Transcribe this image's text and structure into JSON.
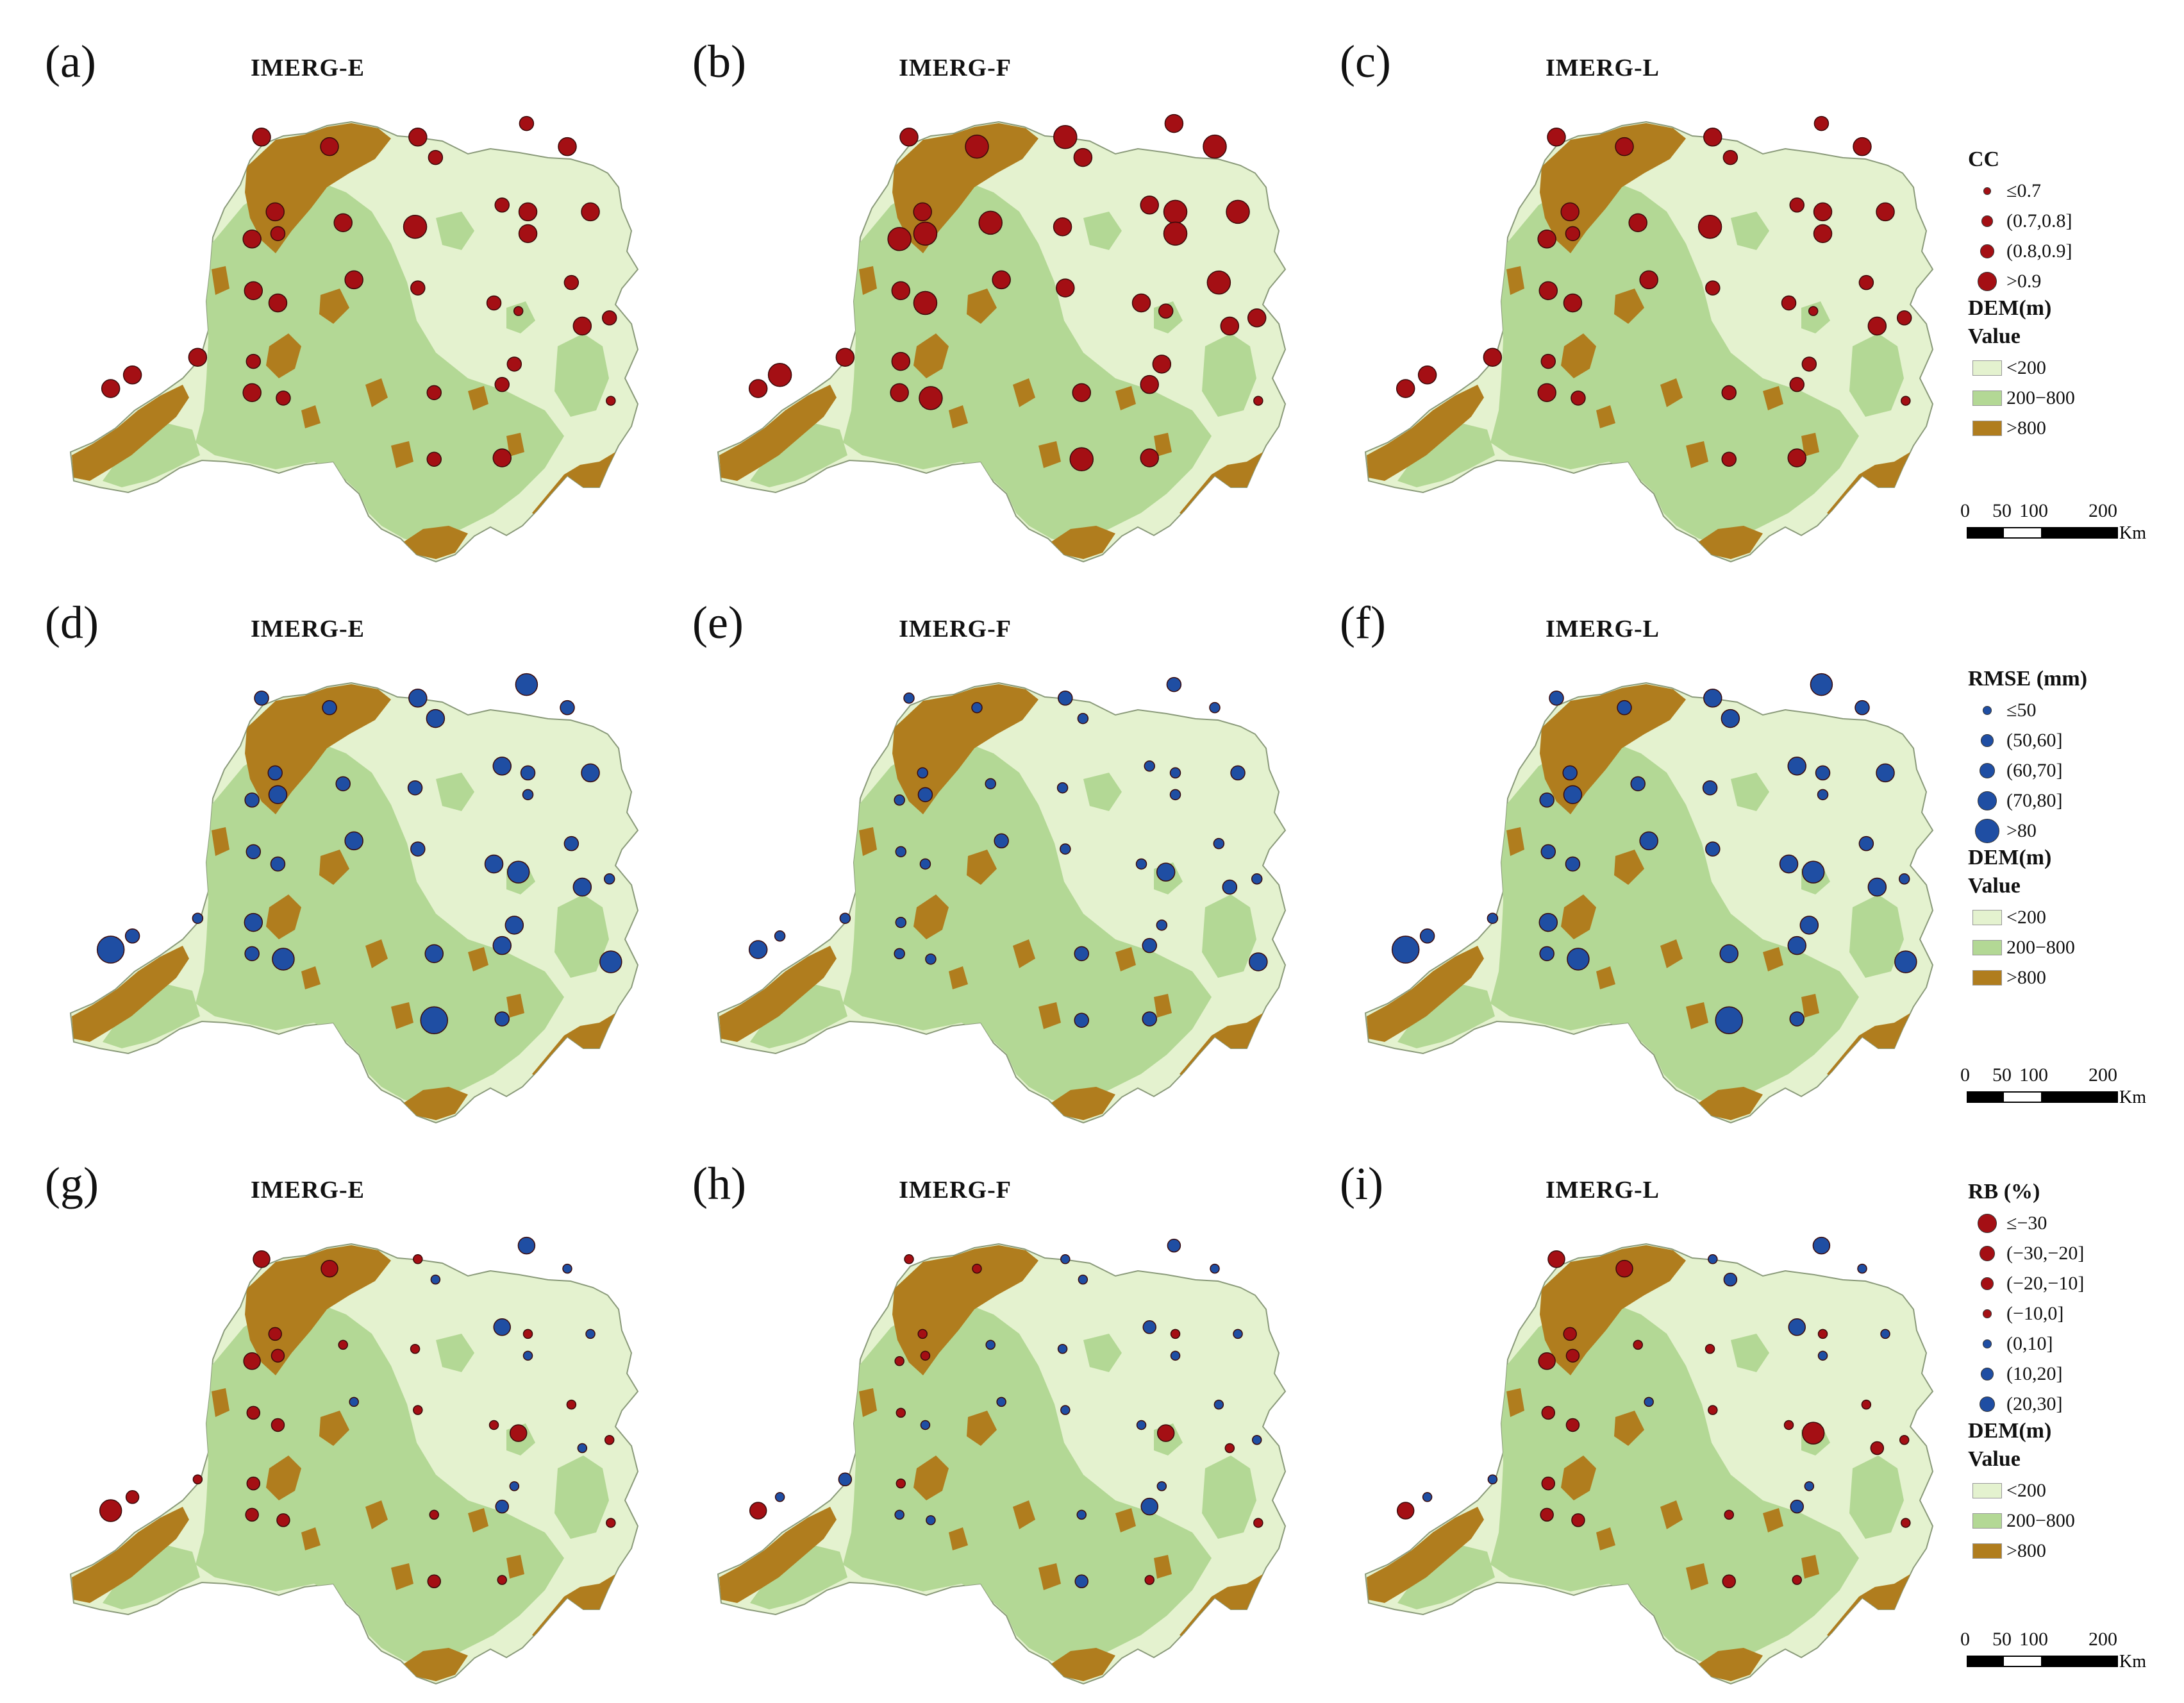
{
  "panels": [
    {
      "letter": "(a)",
      "title": "IMERG-E",
      "row": "cc"
    },
    {
      "letter": "(b)",
      "title": "IMERG-F",
      "row": "cc"
    },
    {
      "letter": "(c)",
      "title": "IMERG-L",
      "row": "cc"
    },
    {
      "letter": "(d)",
      "title": "IMERG-E",
      "row": "rmse"
    },
    {
      "letter": "(e)",
      "title": "IMERG-F",
      "row": "rmse"
    },
    {
      "letter": "(f)",
      "title": "IMERG-L",
      "row": "rmse"
    },
    {
      "letter": "(g)",
      "title": "IMERG-E",
      "row": "rb"
    },
    {
      "letter": "(h)",
      "title": "IMERG-F",
      "row": "rb"
    },
    {
      "letter": "(i)",
      "title": "IMERG-L",
      "row": "rb"
    }
  ],
  "legends": {
    "cc": {
      "title": "CC",
      "classes": [
        {
          "label": "≤0.7",
          "color": "#a40f14",
          "size": 1
        },
        {
          "label": "(0.7,0.8]",
          "color": "#a40f14",
          "size": 2
        },
        {
          "label": "(0.8,0.9]",
          "color": "#a40f14",
          "size": 3
        },
        {
          "label": ">0.9",
          "color": "#a40f14",
          "size": 4
        }
      ]
    },
    "rmse": {
      "title": "RMSE (mm)",
      "classes": [
        {
          "label": "≤50",
          "color": "#1f4ea3",
          "size": 1
        },
        {
          "label": "(50,60]",
          "color": "#1f4ea3",
          "size": 2
        },
        {
          "label": "(60,70]",
          "color": "#1f4ea3",
          "size": 3
        },
        {
          "label": "(70,80]",
          "color": "#1f4ea3",
          "size": 4
        },
        {
          "label": ">80",
          "color": "#1f4ea3",
          "size": 5
        }
      ]
    },
    "rb": {
      "title": "RB (%)",
      "classes": [
        {
          "label": "≤−30",
          "color": "#a40f14",
          "size": 4
        },
        {
          "label": "(−30,−20]",
          "color": "#a40f14",
          "size": 3
        },
        {
          "label": "(−20,−10]",
          "color": "#a40f14",
          "size": 2
        },
        {
          "label": "(−10,0]",
          "color": "#a40f14",
          "size": 1
        },
        {
          "label": "(0,10]",
          "color": "#1f4ea3",
          "size": 1
        },
        {
          "label": "(10,20]",
          "color": "#1f4ea3",
          "size": 2
        },
        {
          "label": "(20,30]",
          "color": "#1f4ea3",
          "size": 3
        }
      ]
    }
  },
  "dem_legend": {
    "title": "DEM(m)",
    "subtitle": "Value",
    "classes": [
      {
        "label": "<200",
        "color": "#e4f2cf"
      },
      {
        "label": "200−800",
        "color": "#b3d895"
      },
      {
        "label": ">800",
        "color": "#b07d1e"
      }
    ]
  },
  "scale_bar": {
    "ticks": [
      "0",
      "50",
      "100",
      "200"
    ],
    "unit": "Km"
  },
  "colors": {
    "red": "#a40f14",
    "blue": "#1f4ea3",
    "low": "#e4f2cf",
    "mid": "#b3d895",
    "high": "#b07d1e"
  }
}
